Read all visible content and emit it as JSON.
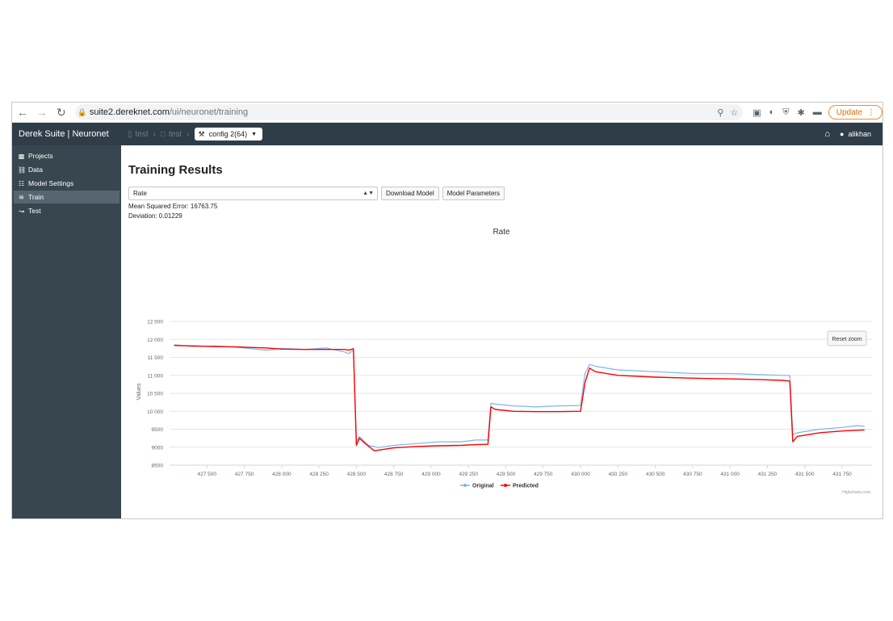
{
  "browser": {
    "url_host": "suite2.dereknet.com",
    "url_path": "/ui/neuronet/training",
    "update_label": "Update"
  },
  "app": {
    "brand": "Derek Suite | Neuronet",
    "breadcrumb": [
      "test",
      "test"
    ],
    "config_label": "config 2(64)",
    "user": "alikhan"
  },
  "sidebar": {
    "items": [
      {
        "label": "Projects",
        "icon": "folder-open-icon"
      },
      {
        "label": "Data",
        "icon": "database-icon"
      },
      {
        "label": "Model Settings",
        "icon": "sliders-icon"
      },
      {
        "label": "Train",
        "icon": "area-chart-icon",
        "active": true
      },
      {
        "label": "Test",
        "icon": "line-chart-icon"
      }
    ]
  },
  "main": {
    "title": "Training Results",
    "select_value": "Rate",
    "download_label": "Download Model",
    "params_label": "Model Parameters",
    "mse": "Mean Squared Error: 16763.75",
    "deviation": "Deviation: 0.01229",
    "reset_zoom": "Reset zoom",
    "credits": "Highcharts.com"
  },
  "chart_data": {
    "type": "line",
    "title": "Rate",
    "ylabel": "Values",
    "ylim": [
      8500,
      12500
    ],
    "xlim": [
      427250,
      431950
    ],
    "yticks": [
      "12 500",
      "12 000",
      "11 500",
      "11 000",
      "10 500",
      "10 000",
      "9500",
      "9000",
      "8500"
    ],
    "xticks": [
      "427 500",
      "427 750",
      "428 000",
      "428 250",
      "428 500",
      "428 750",
      "429 000",
      "429 250",
      "429 500",
      "429 750",
      "430 000",
      "430 250",
      "430 500",
      "430 750",
      "431 000",
      "431 250",
      "431 500",
      "431 750"
    ],
    "legend": "bottom-center",
    "series": [
      {
        "name": "Original",
        "color": "#7cb5ec",
        "x": [
          427280,
          427400,
          427550,
          427700,
          427900,
          428000,
          428150,
          428300,
          428420,
          428450,
          428480,
          428500,
          428520,
          428580,
          428650,
          428750,
          428900,
          429050,
          429200,
          429300,
          429380,
          429400,
          429430,
          429550,
          429700,
          429850,
          430000,
          430030,
          430060,
          430100,
          430250,
          430500,
          430750,
          431000,
          431200,
          431350,
          431400,
          431420,
          431450,
          431600,
          431750,
          431850,
          431900
        ],
        "y": [
          11850,
          11800,
          11820,
          11780,
          11700,
          11750,
          11720,
          11760,
          11650,
          11600,
          11700,
          9150,
          9300,
          9050,
          8990,
          9050,
          9100,
          9150,
          9150,
          9200,
          9200,
          10220,
          10200,
          10150,
          10120,
          10150,
          10160,
          11050,
          11300,
          11250,
          11150,
          11100,
          11050,
          11050,
          11020,
          11000,
          10990,
          9350,
          9400,
          9500,
          9550,
          9600,
          9580
        ]
      },
      {
        "name": "Predicted",
        "color": "#ff0000",
        "x": [
          427280,
          427400,
          427550,
          427700,
          427900,
          428000,
          428150,
          428300,
          428420,
          428450,
          428480,
          428500,
          428520,
          428560,
          428620,
          428750,
          428900,
          429050,
          429200,
          429300,
          429380,
          429400,
          429430,
          429550,
          429700,
          429850,
          430000,
          430030,
          430060,
          430100,
          430250,
          430500,
          430750,
          431000,
          431200,
          431350,
          431400,
          431420,
          431450,
          431600,
          431750,
          431850,
          431900
        ],
        "y": [
          11830,
          11820,
          11800,
          11790,
          11760,
          11730,
          11720,
          11720,
          11720,
          11700,
          11740,
          9050,
          9250,
          9100,
          8900,
          8980,
          9020,
          9040,
          9050,
          9070,
          9080,
          10120,
          10050,
          10000,
          9990,
          9990,
          10000,
          10800,
          11200,
          11100,
          11000,
          10950,
          10920,
          10900,
          10880,
          10860,
          10840,
          9150,
          9300,
          9400,
          9450,
          9470,
          9480
        ]
      }
    ]
  }
}
